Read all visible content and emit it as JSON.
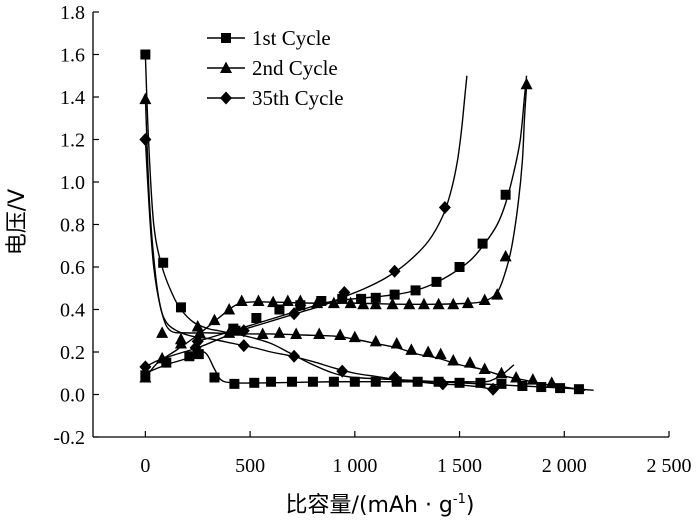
{
  "chart_data": {
    "type": "line",
    "title": "",
    "xlabel": "比容量/(mAh · g",
    "xlabel_sup": "-1",
    "xlabel_tail": ")",
    "ylabel": "电压/V",
    "xlim": [
      -250,
      2500
    ],
    "ylim": [
      -0.2,
      1.8
    ],
    "x_ticks": [
      0,
      500,
      1000,
      1500,
      2000,
      2500
    ],
    "x_tick_labels": [
      "0",
      "500",
      "1 000",
      "1 500",
      "2 000",
      "2 500"
    ],
    "y_ticks": [
      -0.2,
      0.0,
      0.2,
      0.4,
      0.6,
      0.8,
      1.0,
      1.2,
      1.4,
      1.6,
      1.8
    ],
    "y_tick_labels": [
      "-0.2",
      "0.0",
      "0.2",
      "0.4",
      "0.6",
      "0.8",
      "1.0",
      "1.2",
      "1.4",
      "1.6",
      "1.8"
    ],
    "grid": false,
    "legend_position": "top-left",
    "series": [
      {
        "name": "1st Cycle",
        "marker": "square",
        "discharge_curve": [
          [
            0,
            1.6
          ],
          [
            15,
            1.2
          ],
          [
            40,
            0.8
          ],
          [
            80,
            0.6
          ],
          [
            130,
            0.47
          ],
          [
            170,
            0.4
          ],
          [
            230,
            0.34
          ],
          [
            300,
            0.31
          ],
          [
            350,
            0.3
          ],
          [
            400,
            0.29
          ],
          [
            500,
            0.27
          ],
          [
            600,
            0.24
          ],
          [
            700,
            0.19
          ],
          [
            800,
            0.14
          ],
          [
            900,
            0.1
          ],
          [
            1000,
            0.08
          ],
          [
            1200,
            0.07
          ],
          [
            1400,
            0.06
          ],
          [
            1600,
            0.05
          ],
          [
            1800,
            0.04
          ],
          [
            2000,
            0.03
          ],
          [
            2140,
            0.02
          ]
        ],
        "discharge_markers": [
          [
            0,
            1.6
          ],
          [
            85,
            0.62
          ],
          [
            170,
            0.41
          ],
          [
            255,
            0.19
          ],
          [
            420,
            0.31
          ]
        ],
        "charge_curve": [
          [
            0,
            0.1
          ],
          [
            100,
            0.14
          ],
          [
            200,
            0.17
          ],
          [
            280,
            0.2
          ],
          [
            330,
            0.12
          ],
          [
            360,
            0.07
          ],
          [
            420,
            0.055
          ],
          [
            600,
            0.055
          ],
          [
            900,
            0.06
          ],
          [
            1200,
            0.06
          ],
          [
            1500,
            0.06
          ],
          [
            1620,
            0.06
          ],
          [
            1660,
            0.07
          ],
          [
            1700,
            0.09
          ],
          [
            1760,
            0.14
          ]
        ],
        "charge_markers": [
          [
            0,
            0.09
          ],
          [
            100,
            0.15
          ],
          [
            210,
            0.18
          ],
          [
            330,
            0.08
          ],
          [
            425,
            0.05
          ],
          [
            520,
            0.055
          ],
          [
            600,
            0.06
          ],
          [
            700,
            0.06
          ],
          [
            800,
            0.06
          ],
          [
            900,
            0.06
          ],
          [
            1000,
            0.06
          ],
          [
            1100,
            0.06
          ],
          [
            1200,
            0.06
          ],
          [
            1300,
            0.06
          ],
          [
            1400,
            0.06
          ],
          [
            1500,
            0.055
          ],
          [
            1600,
            0.055
          ],
          [
            1700,
            0.05
          ],
          [
            1800,
            0.04
          ],
          [
            1890,
            0.035
          ],
          [
            1980,
            0.03
          ],
          [
            2070,
            0.025
          ]
        ],
        "recharge_curve": [
          [
            250,
            0.25
          ],
          [
            350,
            0.28
          ],
          [
            450,
            0.31
          ],
          [
            550,
            0.34
          ],
          [
            650,
            0.37
          ],
          [
            750,
            0.4
          ],
          [
            850,
            0.43
          ],
          [
            950,
            0.445
          ],
          [
            1050,
            0.455
          ],
          [
            1150,
            0.465
          ],
          [
            1250,
            0.48
          ],
          [
            1350,
            0.51
          ],
          [
            1450,
            0.56
          ],
          [
            1550,
            0.63
          ],
          [
            1620,
            0.71
          ],
          [
            1680,
            0.8
          ],
          [
            1720,
            0.9
          ],
          [
            1760,
            1.05
          ],
          [
            1790,
            1.2
          ],
          [
            1810,
            1.4
          ],
          [
            1820,
            1.5
          ]
        ],
        "recharge_markers": [
          [
            430,
            0.3
          ],
          [
            530,
            0.36
          ],
          [
            640,
            0.4
          ],
          [
            740,
            0.42
          ],
          [
            840,
            0.44
          ],
          [
            940,
            0.45
          ],
          [
            1030,
            0.45
          ],
          [
            1100,
            0.455
          ],
          [
            1190,
            0.47
          ],
          [
            1290,
            0.49
          ],
          [
            1390,
            0.53
          ],
          [
            1500,
            0.6
          ],
          [
            1610,
            0.71
          ],
          [
            1720,
            0.94
          ]
        ]
      },
      {
        "name": "2nd Cycle",
        "marker": "triangle",
        "discharge_curve": [
          [
            0,
            1.4
          ],
          [
            20,
            0.9
          ],
          [
            50,
            0.55
          ],
          [
            80,
            0.38
          ],
          [
            120,
            0.3
          ],
          [
            200,
            0.29
          ],
          [
            300,
            0.29
          ],
          [
            450,
            0.285
          ],
          [
            600,
            0.285
          ],
          [
            750,
            0.28
          ],
          [
            900,
            0.275
          ],
          [
            1000,
            0.26
          ],
          [
            1100,
            0.24
          ],
          [
            1200,
            0.22
          ],
          [
            1300,
            0.19
          ],
          [
            1400,
            0.17
          ],
          [
            1500,
            0.14
          ],
          [
            1600,
            0.12
          ],
          [
            1700,
            0.09
          ],
          [
            1800,
            0.07
          ],
          [
            1900,
            0.05
          ],
          [
            2000,
            0.035
          ],
          [
            2100,
            0.02
          ]
        ],
        "discharge_markers": [
          [
            0,
            1.39
          ],
          [
            80,
            0.29
          ],
          [
            170,
            0.26
          ],
          [
            260,
            0.29
          ],
          [
            400,
            0.29
          ],
          [
            560,
            0.285
          ],
          [
            640,
            0.29
          ],
          [
            720,
            0.285
          ],
          [
            830,
            0.285
          ],
          [
            930,
            0.28
          ],
          [
            1000,
            0.27
          ],
          [
            1100,
            0.25
          ],
          [
            1200,
            0.24
          ],
          [
            1270,
            0.21
          ],
          [
            1350,
            0.2
          ],
          [
            1410,
            0.19
          ],
          [
            1470,
            0.16
          ],
          [
            1550,
            0.15
          ],
          [
            1620,
            0.12
          ],
          [
            1700,
            0.1
          ],
          [
            1770,
            0.08
          ],
          [
            1850,
            0.07
          ],
          [
            1940,
            0.055
          ]
        ],
        "charge_curve": [
          [
            0,
            0.08
          ],
          [
            60,
            0.15
          ],
          [
            150,
            0.21
          ],
          [
            250,
            0.28
          ],
          [
            350,
            0.36
          ],
          [
            430,
            0.42
          ],
          [
            500,
            0.435
          ],
          [
            600,
            0.435
          ],
          [
            800,
            0.43
          ],
          [
            1000,
            0.43
          ],
          [
            1200,
            0.425
          ],
          [
            1400,
            0.425
          ],
          [
            1550,
            0.43
          ],
          [
            1620,
            0.44
          ],
          [
            1680,
            0.48
          ],
          [
            1720,
            0.58
          ],
          [
            1750,
            0.7
          ],
          [
            1780,
            0.9
          ],
          [
            1800,
            1.1
          ],
          [
            1810,
            1.3
          ],
          [
            1820,
            1.45
          ]
        ],
        "charge_markers": [
          [
            0,
            0.08
          ],
          [
            80,
            0.17
          ],
          [
            170,
            0.24
          ],
          [
            250,
            0.32
          ],
          [
            330,
            0.35
          ],
          [
            400,
            0.4
          ],
          [
            460,
            0.44
          ],
          [
            540,
            0.44
          ],
          [
            610,
            0.435
          ],
          [
            680,
            0.44
          ],
          [
            740,
            0.44
          ],
          [
            820,
            0.43
          ],
          [
            900,
            0.43
          ],
          [
            980,
            0.43
          ],
          [
            1040,
            0.425
          ],
          [
            1100,
            0.425
          ],
          [
            1180,
            0.425
          ],
          [
            1260,
            0.425
          ],
          [
            1330,
            0.425
          ],
          [
            1400,
            0.425
          ],
          [
            1470,
            0.425
          ],
          [
            1540,
            0.43
          ],
          [
            1620,
            0.445
          ],
          [
            1680,
            0.47
          ],
          [
            1720,
            0.65
          ],
          [
            1820,
            1.46
          ]
        ]
      },
      {
        "name": "35th Cycle",
        "marker": "diamond",
        "discharge_curve": [
          [
            0,
            1.2
          ],
          [
            20,
            0.85
          ],
          [
            40,
            0.6
          ],
          [
            70,
            0.42
          ],
          [
            100,
            0.34
          ],
          [
            150,
            0.3
          ],
          [
            220,
            0.275
          ],
          [
            320,
            0.26
          ],
          [
            420,
            0.24
          ],
          [
            520,
            0.22
          ],
          [
            600,
            0.2
          ],
          [
            700,
            0.18
          ],
          [
            800,
            0.155
          ],
          [
            900,
            0.125
          ],
          [
            1000,
            0.1
          ],
          [
            1100,
            0.085
          ],
          [
            1200,
            0.07
          ],
          [
            1300,
            0.06
          ],
          [
            1400,
            0.05
          ],
          [
            1500,
            0.045
          ],
          [
            1600,
            0.035
          ],
          [
            1650,
            0.025
          ]
        ],
        "discharge_markers": [
          [
            0,
            1.2
          ],
          [
            250,
            0.25
          ],
          [
            470,
            0.23
          ],
          [
            710,
            0.18
          ],
          [
            940,
            0.11
          ],
          [
            1190,
            0.08
          ],
          [
            1420,
            0.05
          ],
          [
            1660,
            0.025
          ]
        ],
        "charge_curve": [
          [
            0,
            0.13
          ],
          [
            60,
            0.16
          ],
          [
            150,
            0.19
          ],
          [
            250,
            0.22
          ],
          [
            350,
            0.26
          ],
          [
            450,
            0.3
          ],
          [
            550,
            0.33
          ],
          [
            650,
            0.36
          ],
          [
            750,
            0.39
          ],
          [
            850,
            0.42
          ],
          [
            950,
            0.46
          ],
          [
            1050,
            0.5
          ],
          [
            1150,
            0.55
          ],
          [
            1250,
            0.62
          ],
          [
            1350,
            0.72
          ],
          [
            1420,
            0.84
          ],
          [
            1460,
            0.96
          ],
          [
            1490,
            1.1
          ],
          [
            1510,
            1.25
          ],
          [
            1525,
            1.4
          ],
          [
            1535,
            1.5
          ]
        ],
        "charge_markers": [
          [
            0,
            0.13
          ],
          [
            240,
            0.22
          ],
          [
            470,
            0.3
          ],
          [
            710,
            0.38
          ],
          [
            950,
            0.48
          ],
          [
            1190,
            0.58
          ],
          [
            1430,
            0.88
          ]
        ]
      }
    ]
  }
}
